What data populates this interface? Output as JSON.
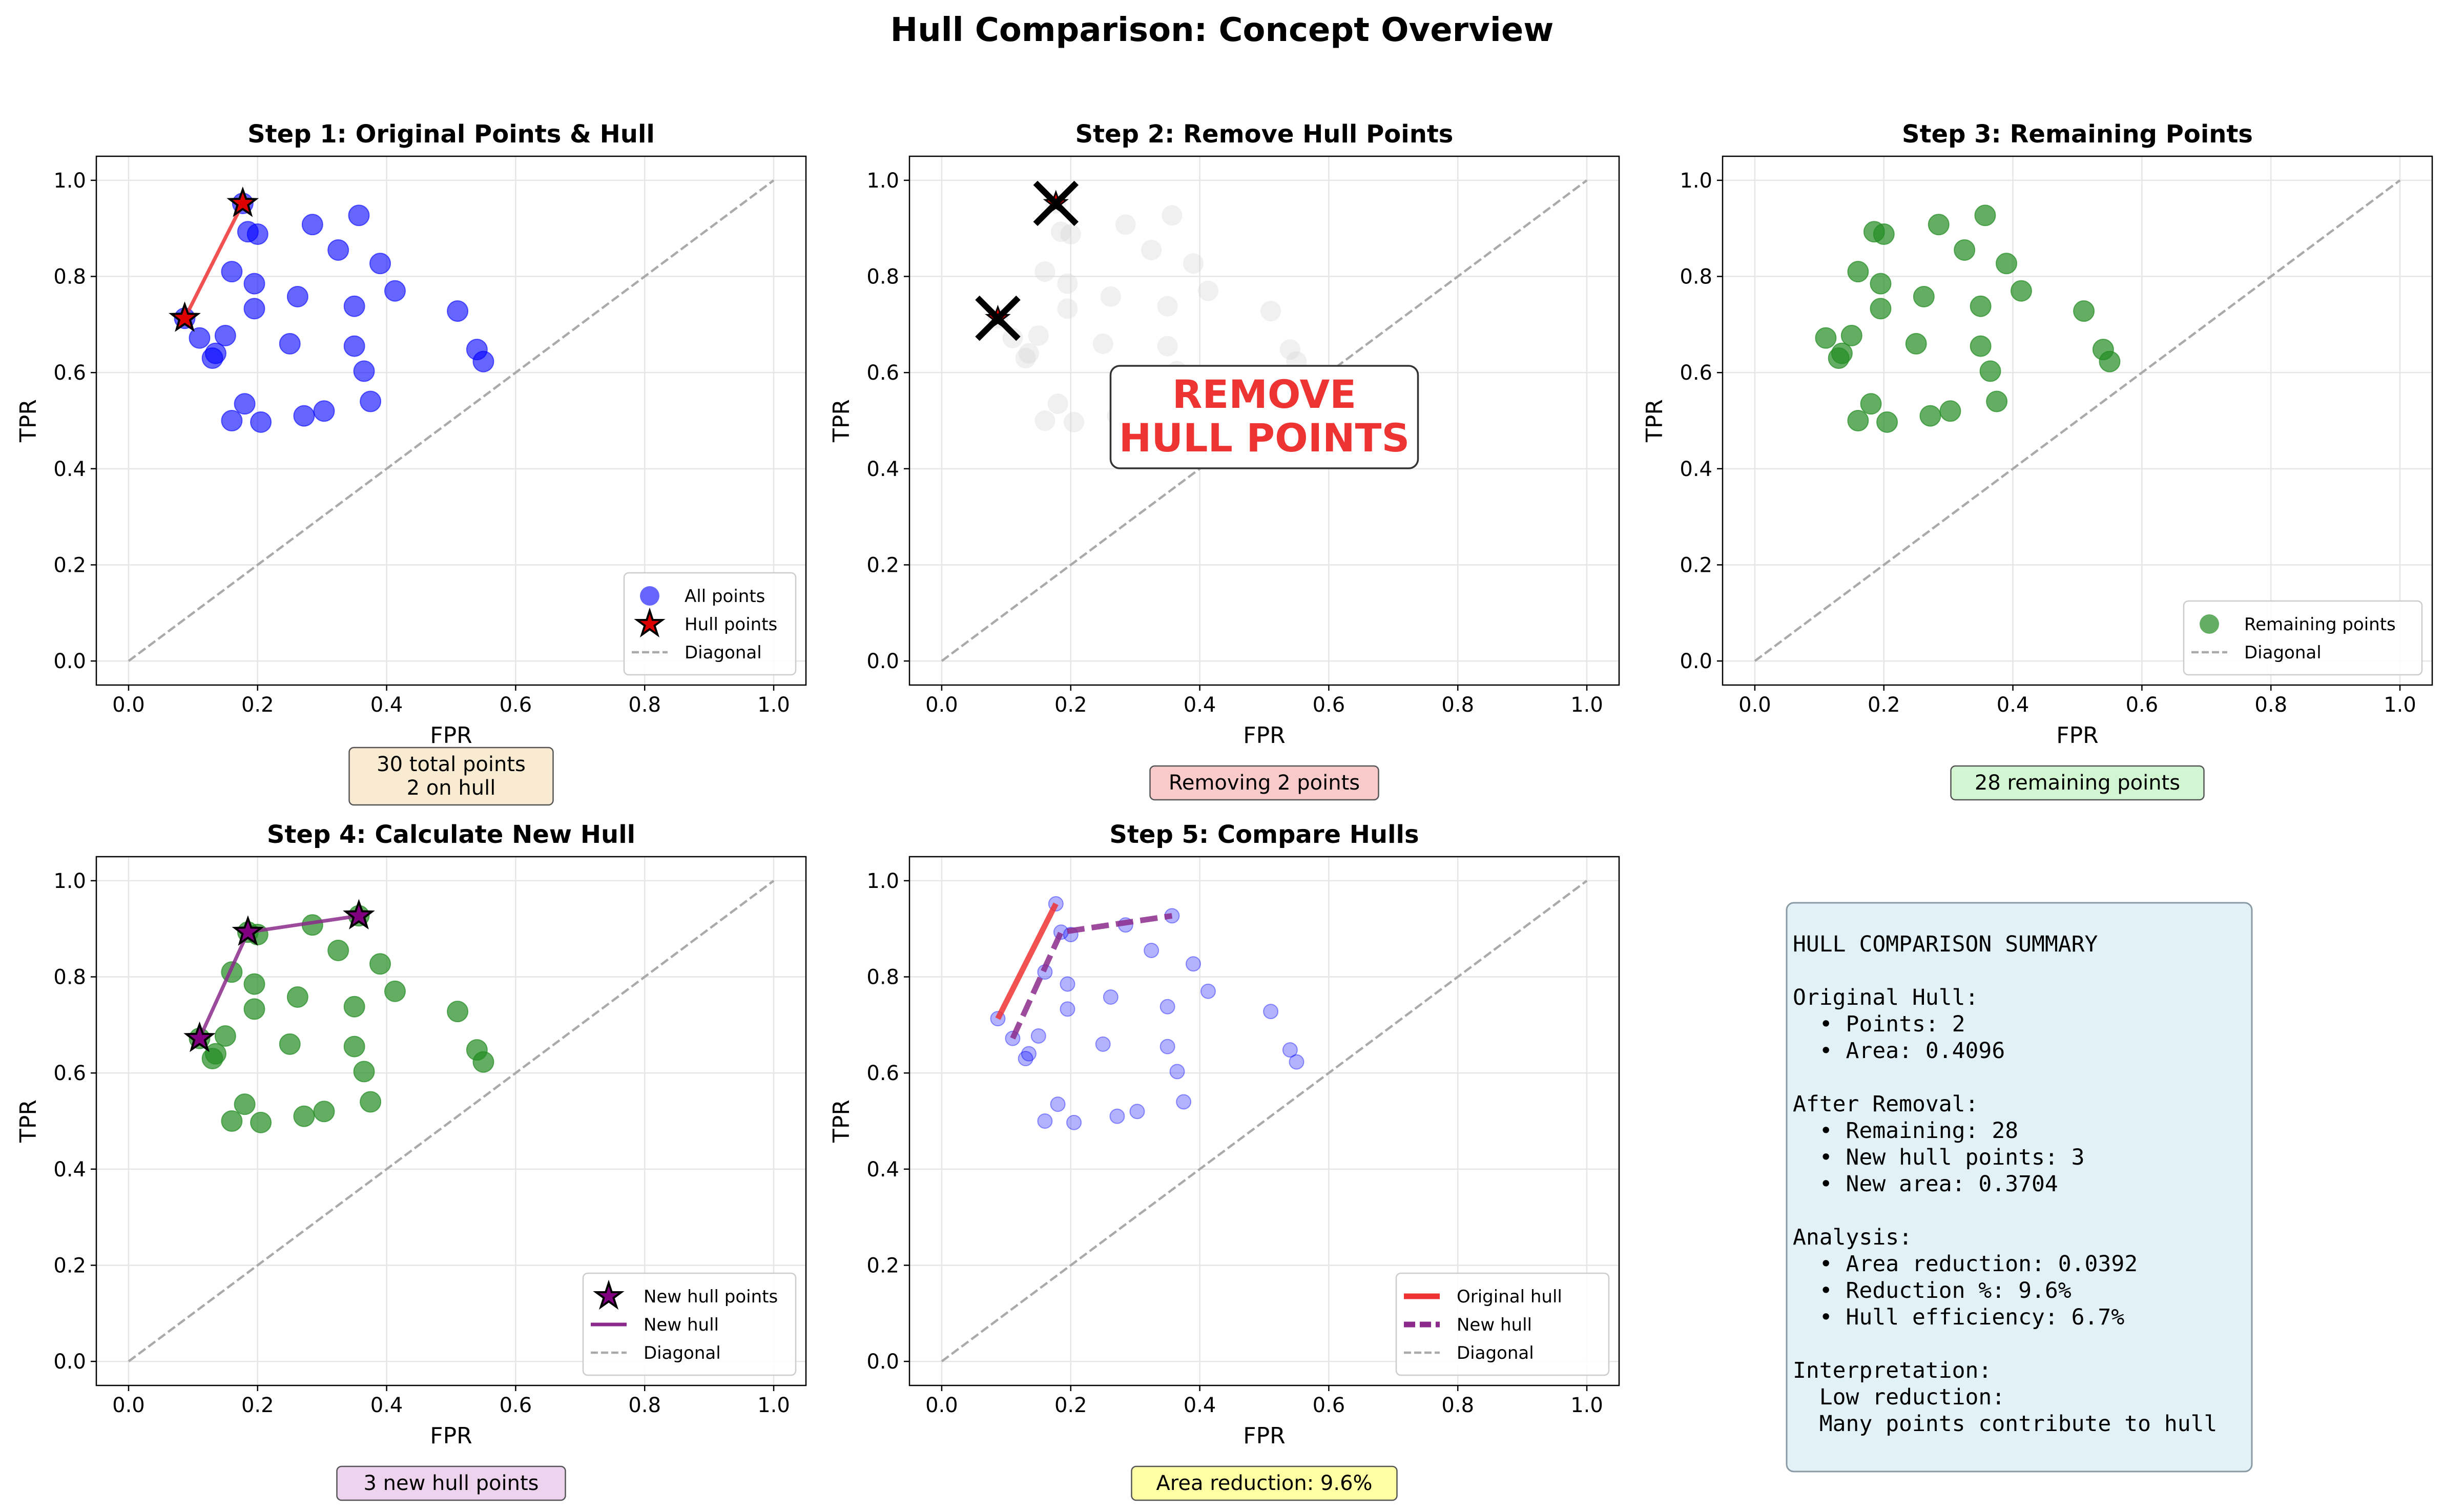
{
  "suptitle": "Hull Comparison: Concept Overview",
  "colors": {
    "blue": "#0000ff",
    "green": "#228b22",
    "red": "#ee3333",
    "purple": "#8b2a8b",
    "gray": "#aaaaaa",
    "faded": "#d3d3d3"
  },
  "chart_data": [
    {
      "type": "scatter",
      "title": "Step 1: Original Points & Hull",
      "xlabel": "FPR",
      "ylabel": "TPR",
      "xlim": [
        -0.05,
        1.05
      ],
      "ylim": [
        -0.05,
        1.05
      ],
      "xticks": [
        "0.0",
        "0.2",
        "0.4",
        "0.6",
        "0.8",
        "1.0"
      ],
      "yticks": [
        "0.0",
        "0.2",
        "0.4",
        "0.6",
        "0.8",
        "1.0"
      ],
      "grid": true,
      "legend_position": "lower right",
      "legend": [
        "All points",
        "Hull points",
        "Diagonal"
      ],
      "annotation": "30 total points\n2 on hull",
      "annotation_color": "#f5deb3"
    },
    {
      "type": "scatter",
      "title": "Step 2: Remove Hull Points",
      "xlabel": "FPR",
      "ylabel": "TPR",
      "xlim": [
        -0.05,
        1.05
      ],
      "ylim": [
        -0.05,
        1.05
      ],
      "xticks": [
        "0.0",
        "0.2",
        "0.4",
        "0.6",
        "0.8",
        "1.0"
      ],
      "yticks": [
        "0.0",
        "0.2",
        "0.4",
        "0.6",
        "0.8",
        "1.0"
      ],
      "grid": true,
      "center_text": "REMOVE\nHULL POINTS",
      "annotation": "Removing 2 points",
      "annotation_color": "#f4a6a6"
    },
    {
      "type": "scatter",
      "title": "Step 3: Remaining Points",
      "xlabel": "FPR",
      "ylabel": "TPR",
      "xlim": [
        -0.05,
        1.05
      ],
      "ylim": [
        -0.05,
        1.05
      ],
      "xticks": [
        "0.0",
        "0.2",
        "0.4",
        "0.6",
        "0.8",
        "1.0"
      ],
      "yticks": [
        "0.0",
        "0.2",
        "0.4",
        "0.6",
        "0.8",
        "1.0"
      ],
      "grid": true,
      "legend_position": "lower right",
      "legend": [
        "Remaining points",
        "Diagonal"
      ],
      "annotation": "28 remaining points",
      "annotation_color": "#b2f0b2"
    },
    {
      "type": "scatter",
      "title": "Step 4: Calculate New Hull",
      "xlabel": "FPR",
      "ylabel": "TPR",
      "xlim": [
        -0.05,
        1.05
      ],
      "ylim": [
        -0.05,
        1.05
      ],
      "xticks": [
        "0.0",
        "0.2",
        "0.4",
        "0.6",
        "0.8",
        "1.0"
      ],
      "yticks": [
        "0.0",
        "0.2",
        "0.4",
        "0.6",
        "0.8",
        "1.0"
      ],
      "grid": true,
      "legend_position": "lower right",
      "legend": [
        "New hull points",
        "New hull",
        "Diagonal"
      ],
      "annotation": "3 new hull points",
      "annotation_color": "#e3b5e3"
    },
    {
      "type": "scatter",
      "title": "Step 5: Compare Hulls",
      "xlabel": "FPR",
      "ylabel": "TPR",
      "xlim": [
        -0.05,
        1.05
      ],
      "ylim": [
        -0.05,
        1.05
      ],
      "xticks": [
        "0.0",
        "0.2",
        "0.4",
        "0.6",
        "0.8",
        "1.0"
      ],
      "yticks": [
        "0.0",
        "0.2",
        "0.4",
        "0.6",
        "0.8",
        "1.0"
      ],
      "grid": true,
      "legend_position": "lower right",
      "legend": [
        "Original hull",
        "New hull",
        "Diagonal"
      ],
      "annotation": "Area reduction: 9.6%",
      "annotation_color": "#ffff66"
    }
  ],
  "points": {
    "remaining": [
      [
        0.11,
        0.672
      ],
      [
        0.13,
        0.63
      ],
      [
        0.135,
        0.64
      ],
      [
        0.15,
        0.677
      ],
      [
        0.16,
        0.81
      ],
      [
        0.16,
        0.5
      ],
      [
        0.18,
        0.535
      ],
      [
        0.185,
        0.893
      ],
      [
        0.195,
        0.733
      ],
      [
        0.195,
        0.785
      ],
      [
        0.2,
        0.888
      ],
      [
        0.205,
        0.497
      ],
      [
        0.25,
        0.66
      ],
      [
        0.262,
        0.758
      ],
      [
        0.285,
        0.908
      ],
      [
        0.272,
        0.51
      ],
      [
        0.303,
        0.52
      ],
      [
        0.325,
        0.855
      ],
      [
        0.35,
        0.738
      ],
      [
        0.35,
        0.655
      ],
      [
        0.357,
        0.927
      ],
      [
        0.365,
        0.603
      ],
      [
        0.375,
        0.54
      ],
      [
        0.39,
        0.827
      ],
      [
        0.413,
        0.77
      ],
      [
        0.51,
        0.728
      ],
      [
        0.54,
        0.648
      ],
      [
        0.55,
        0.623
      ]
    ],
    "original_hull": [
      [
        0.087,
        0.713
      ],
      [
        0.177,
        0.952
      ]
    ],
    "new_hull": [
      [
        0.11,
        0.672
      ],
      [
        0.185,
        0.893
      ],
      [
        0.357,
        0.927
      ]
    ]
  },
  "summary": {
    "lines": [
      "HULL COMPARISON SUMMARY",
      "",
      "Original Hull:",
      "  • Points: 2",
      "  • Area: 0.4096",
      "",
      "After Removal:",
      "  • Remaining: 28",
      "  • New hull points: 3",
      "  • New area: 0.3704",
      "",
      "Analysis:",
      "  • Area reduction: 0.0392",
      "  • Reduction %: 9.6%",
      "  • Hull efficiency: 6.7%",
      "",
      "Interpretation:",
      "  Low reduction:",
      "  Many points contribute to hull"
    ]
  }
}
